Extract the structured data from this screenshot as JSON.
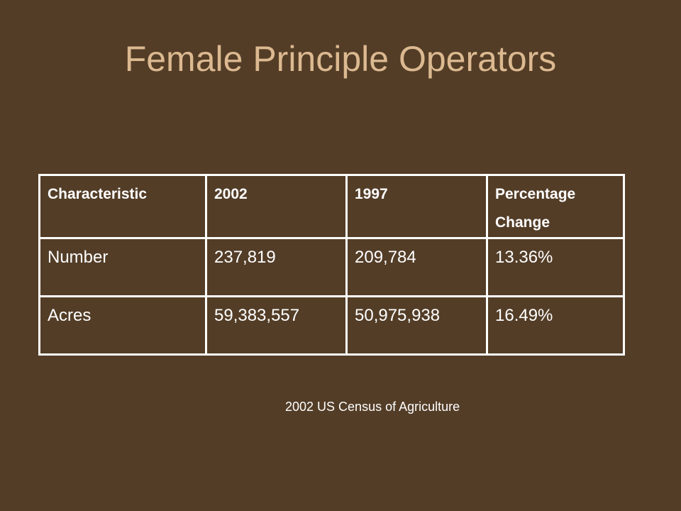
{
  "slide": {
    "title": "Female Principle Operators",
    "source": "2002 US Census of Agriculture"
  },
  "table": {
    "headers": [
      "Characteristic",
      "2002",
      "1997",
      "Percentage Change"
    ],
    "rows": [
      [
        "Number",
        "237,819",
        "209,784",
        "13.36%"
      ],
      [
        "Acres",
        "59,383,557",
        "50,975,938",
        "16.49%"
      ]
    ]
  },
  "colors": {
    "background": "#533d27",
    "title": "#dcb990",
    "text": "#ffffff"
  }
}
